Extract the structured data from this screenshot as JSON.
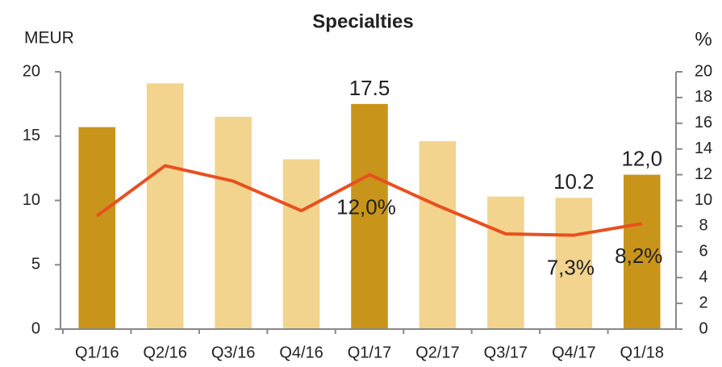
{
  "chart_data": {
    "type": "bar_line",
    "title": "Specialties",
    "ylabel": "MEUR",
    "y2label": "%",
    "categories": [
      "Q1/16",
      "Q2/16",
      "Q3/16",
      "Q4/16",
      "Q1/17",
      "Q2/17",
      "Q3/17",
      "Q4/17",
      "Q1/18"
    ],
    "series": [
      {
        "type": "bar",
        "colors": [
          "#c8951a",
          "#f2d48e",
          "#f2d48e",
          "#f2d48e",
          "#c8951a",
          "#f2d48e",
          "#f2d48e",
          "#f2d48e",
          "#c8951a"
        ],
        "values": [
          15.7,
          19.1,
          16.5,
          13.2,
          17.5,
          14.6,
          10.3,
          10.2,
          12.0
        ],
        "value_labels": [
          null,
          null,
          null,
          null,
          "17.5",
          null,
          null,
          "10.2",
          "12,0"
        ]
      },
      {
        "type": "line",
        "axis": "y2",
        "color": "#e8501f",
        "values": [
          8.8,
          12.7,
          11.5,
          9.2,
          12.0,
          9.6,
          7.4,
          7.3,
          8.2
        ],
        "value_labels": [
          null,
          null,
          null,
          null,
          "12,0%",
          null,
          null,
          "7,3%",
          "8,2%"
        ]
      }
    ],
    "ylim": [
      0,
      20
    ],
    "yticks": [
      0,
      5,
      10,
      15,
      20
    ],
    "y2lim": [
      0,
      20
    ],
    "y2ticks": [
      0,
      2,
      4,
      6,
      8,
      10,
      12,
      14,
      16,
      18,
      20
    ]
  }
}
